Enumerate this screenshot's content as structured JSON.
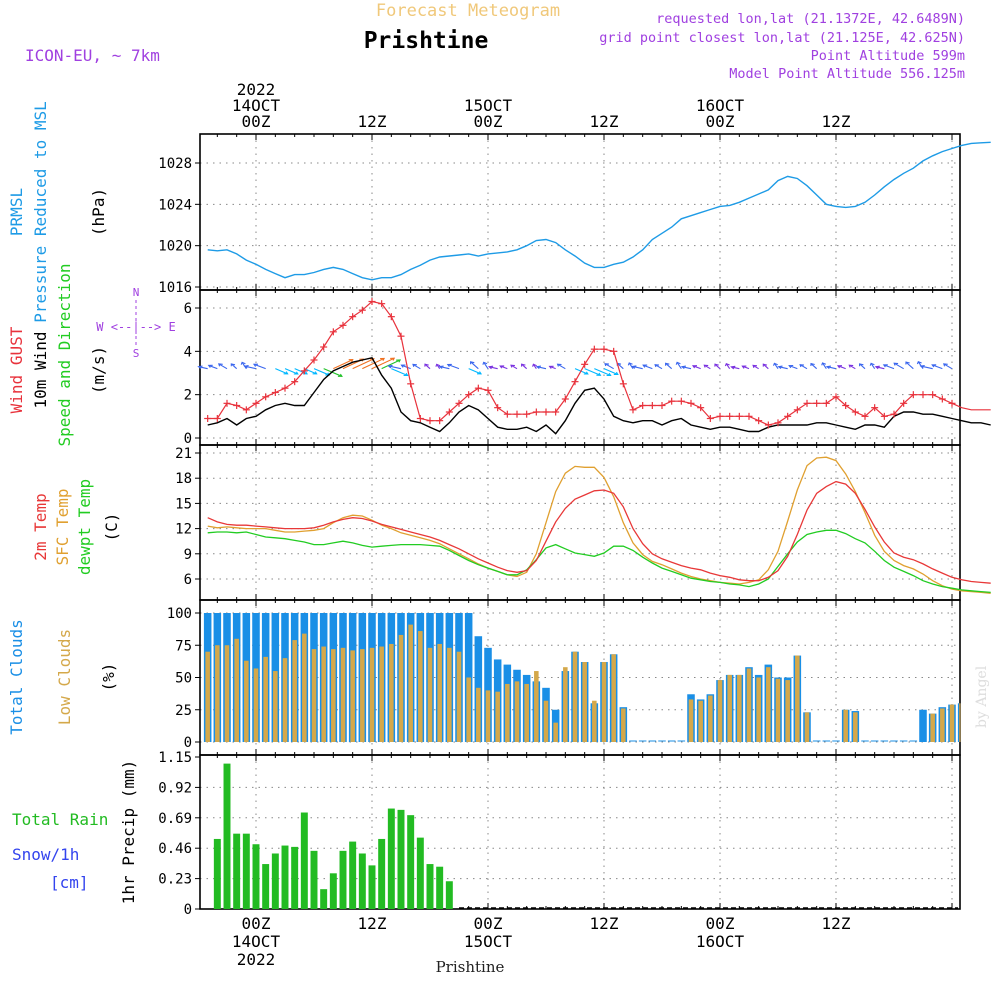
{
  "header": {
    "super_title": "Forecast Meteogram",
    "station": "Prishtine",
    "model": "ICON-EU, ~ 7km",
    "requested": "requested lon,lat (21.1372E, 42.6489N)",
    "grid_point": "grid point closest lon,lat (21.125E, 42.625N)",
    "point_alt": "Point Altitude 599m",
    "model_alt": "Model Point Altitude 556.125m",
    "watermark": "by Angel",
    "footer": "Prishtine"
  },
  "time_axis": {
    "top_labels": [
      {
        "h": 0,
        "lines": [
          "2022",
          "14OCT",
          "00Z"
        ]
      },
      {
        "h": 12,
        "lines": [
          "12Z"
        ]
      },
      {
        "h": 24,
        "lines": [
          "15OCT",
          "00Z"
        ]
      },
      {
        "h": 36,
        "lines": [
          "12Z"
        ]
      },
      {
        "h": 48,
        "lines": [
          "16OCT",
          "00Z"
        ]
      },
      {
        "h": 60,
        "lines": [
          "12Z"
        ]
      }
    ],
    "bottom_labels": [
      {
        "h": 0,
        "lines": [
          "00Z",
          "14OCT",
          "2022"
        ]
      },
      {
        "h": 12,
        "lines": [
          "12Z"
        ]
      },
      {
        "h": 24,
        "lines": [
          "00Z",
          "15OCT"
        ]
      },
      {
        "h": 36,
        "lines": [
          "12Z"
        ]
      },
      {
        "h": 48,
        "lines": [
          "00Z",
          "16OCT"
        ]
      },
      {
        "h": 60,
        "lines": [
          "12Z"
        ]
      }
    ]
  },
  "panels": {
    "pressure": {
      "labels": [
        "PRMSL",
        "Pressure Reduced to MSL"
      ],
      "unit": "(hPa)",
      "ticks": [
        "1016",
        "1020",
        "1024",
        "1028"
      ]
    },
    "wind": {
      "labels": [
        "Wind GUST",
        "10m Wind",
        "Speed and Direction"
      ],
      "unit": "(m/s)",
      "ticks": [
        "0",
        "2",
        "4",
        "6"
      ],
      "compass": {
        "we": "W <--|--> E",
        "n": "N",
        "s": "S"
      }
    },
    "temp": {
      "labels": [
        "2m Temp",
        "SFC Temp",
        "dewpt Temp"
      ],
      "unit": "(C)",
      "ticks": [
        "6",
        "9",
        "12",
        "15",
        "18",
        "21"
      ]
    },
    "clouds": {
      "labels": [
        "Total Clouds",
        "Low Clouds"
      ],
      "unit": "(%)",
      "ticks": [
        "0",
        "25",
        "50",
        "75",
        "100"
      ]
    },
    "precip": {
      "labels": [
        "Total  Rain",
        "Snow/1h",
        "[cm]"
      ],
      "unit": "1hr Precip (mm)",
      "ticks": [
        "0",
        "0.23",
        "0.46",
        "0.69",
        "0.92",
        "1.15"
      ]
    }
  },
  "colors": {
    "pressure": "#1e9be6",
    "gust": "#e8323c",
    "wind": "#000000",
    "green": "#22cc22",
    "temp2m": "#e83838",
    "sfc": "#e0a030",
    "dewpt": "#22cc22",
    "total_clouds": "#1a8fe6",
    "low_clouds": "#d4a84a",
    "rain": "#22bb22",
    "snow": "#3344ee",
    "title_gold": "#f0c87a",
    "purple": "#a040e0",
    "grid": "#888888"
  },
  "chart_data": {
    "type": "line",
    "x_unit": "hours from 14OCT 00Z",
    "x_range": [
      -5,
      76
    ],
    "pressure": {
      "ylim": [
        1016,
        1030
      ],
      "x": [
        -5,
        -4,
        -3,
        -2,
        -1,
        0,
        1,
        2,
        3,
        4,
        5,
        6,
        7,
        8,
        9,
        10,
        11,
        12,
        13,
        14,
        15,
        16,
        17,
        18,
        19,
        20,
        21,
        22,
        23,
        24,
        25,
        26,
        27,
        28,
        29,
        30,
        31,
        32,
        33,
        34,
        35,
        36,
        37,
        38,
        39,
        40,
        41,
        42,
        43,
        44,
        45,
        46,
        47,
        48,
        49,
        50,
        51,
        52,
        53,
        54,
        55,
        56,
        57,
        58,
        59,
        60,
        61,
        62,
        63,
        64,
        65,
        66,
        67,
        68,
        69,
        70,
        71,
        72,
        73,
        74,
        75,
        76
      ],
      "y": [
        1019.6,
        1019.5,
        1019.6,
        1019.2,
        1018.6,
        1018.2,
        1017.7,
        1017.3,
        1016.9,
        1017.2,
        1017.2,
        1017.4,
        1017.7,
        1017.9,
        1017.7,
        1017.3,
        1016.9,
        1016.7,
        1016.9,
        1016.9,
        1017.2,
        1017.7,
        1018.1,
        1018.6,
        1018.9,
        1019.0,
        1019.1,
        1019.2,
        1019.0,
        1019.2,
        1019.3,
        1019.4,
        1019.6,
        1020.0,
        1020.5,
        1020.6,
        1020.3,
        1019.6,
        1019.0,
        1018.3,
        1017.9,
        1017.9,
        1018.2,
        1018.4,
        1018.9,
        1019.6,
        1020.6,
        1021.2,
        1021.8,
        1022.6,
        1022.9,
        1023.2,
        1023.5,
        1023.8,
        1023.9,
        1024.2,
        1024.6,
        1025.0,
        1025.4,
        1026.3,
        1026.7,
        1026.5,
        1025.8,
        1024.9,
        1024.0,
        1023.8,
        1023.7,
        1023.8,
        1024.2,
        1024.9,
        1025.7,
        1026.4,
        1027.0,
        1027.5,
        1028.2,
        1028.7,
        1029.1,
        1029.4,
        1029.7,
        1029.9,
        1029.95,
        1030.0
      ]
    },
    "wind": {
      "ylim": [
        0,
        6.8
      ],
      "gust_x": [
        -5,
        -4,
        -3,
        -2,
        -1,
        0,
        1,
        2,
        3,
        4,
        5,
        6,
        7,
        8,
        9,
        10,
        11,
        12,
        13,
        14,
        15,
        16,
        17,
        18,
        19,
        20,
        21,
        22,
        23,
        24,
        25,
        26,
        27,
        28,
        29,
        30,
        31,
        32,
        33,
        34,
        35,
        36,
        37,
        38,
        39,
        40,
        41,
        42,
        43,
        44,
        45,
        46,
        47,
        48,
        49,
        50,
        51,
        52,
        53,
        54,
        55,
        56,
        57,
        58,
        59,
        60,
        61,
        62,
        63,
        64,
        65,
        66,
        67,
        68,
        69,
        70,
        71,
        72,
        73,
        74,
        75,
        76
      ],
      "gust_y": [
        0.9,
        0.9,
        1.6,
        1.5,
        1.3,
        1.6,
        1.9,
        2.1,
        2.3,
        2.6,
        3.1,
        3.6,
        4.2,
        4.9,
        5.2,
        5.6,
        5.9,
        6.3,
        6.2,
        5.6,
        4.7,
        2.5,
        0.9,
        0.8,
        0.8,
        1.2,
        1.6,
        2.0,
        2.3,
        2.2,
        1.4,
        1.1,
        1.1,
        1.1,
        1.2,
        1.2,
        1.2,
        1.8,
        2.6,
        3.4,
        4.1,
        4.1,
        4.0,
        2.5,
        1.3,
        1.5,
        1.5,
        1.5,
        1.7,
        1.7,
        1.6,
        1.4,
        0.9,
        1.0,
        1.0,
        1.0,
        1.0,
        0.8,
        0.6,
        0.7,
        1.0,
        1.3,
        1.6,
        1.6,
        1.6,
        1.9,
        1.5,
        1.2,
        1.0,
        1.4,
        1.0,
        1.1,
        1.6,
        2.0,
        2.0,
        2.0,
        1.8,
        1.6,
        1.4,
        1.3,
        1.3,
        1.3
      ],
      "speed_x": [
        -5,
        -4,
        -3,
        -2,
        -1,
        0,
        1,
        2,
        3,
        4,
        5,
        6,
        7,
        8,
        9,
        10,
        11,
        12,
        13,
        14,
        15,
        16,
        17,
        18,
        19,
        20,
        21,
        22,
        23,
        24,
        25,
        26,
        27,
        28,
        29,
        30,
        31,
        32,
        33,
        34,
        35,
        36,
        37,
        38,
        39,
        40,
        41,
        42,
        43,
        44,
        45,
        46,
        47,
        48,
        49,
        50,
        51,
        52,
        53,
        54,
        55,
        56,
        57,
        58,
        59,
        60,
        61,
        62,
        63,
        64,
        65,
        66,
        67,
        68,
        69,
        70,
        71,
        72,
        73,
        74,
        75,
        76
      ],
      "speed_y": [
        0.6,
        0.7,
        0.9,
        0.6,
        0.9,
        1.0,
        1.3,
        1.5,
        1.6,
        1.5,
        1.5,
        2.1,
        2.7,
        3.1,
        3.3,
        3.5,
        3.6,
        3.7,
        2.9,
        2.3,
        1.2,
        0.8,
        0.7,
        0.5,
        0.3,
        0.7,
        1.2,
        1.5,
        1.3,
        0.9,
        0.5,
        0.4,
        0.4,
        0.5,
        0.3,
        0.6,
        0.2,
        0.8,
        1.6,
        2.2,
        2.3,
        1.8,
        1.0,
        0.8,
        0.7,
        0.8,
        0.8,
        0.6,
        0.8,
        0.9,
        0.6,
        0.5,
        0.4,
        0.5,
        0.5,
        0.4,
        0.3,
        0.3,
        0.5,
        0.6,
        0.6,
        0.6,
        0.6,
        0.7,
        0.7,
        0.6,
        0.5,
        0.4,
        0.6,
        0.6,
        0.5,
        1.0,
        1.2,
        1.2,
        1.1,
        1.1,
        1.0,
        0.9,
        0.8,
        0.7,
        0.7,
        0.6
      ]
    },
    "temperature": {
      "ylim": [
        4,
        21
      ],
      "x": [
        -5,
        -4,
        -3,
        -2,
        -1,
        0,
        1,
        2,
        3,
        4,
        5,
        6,
        7,
        8,
        9,
        10,
        11,
        12,
        13,
        14,
        15,
        16,
        17,
        18,
        19,
        20,
        21,
        22,
        23,
        24,
        25,
        26,
        27,
        28,
        29,
        30,
        31,
        32,
        33,
        34,
        35,
        36,
        37,
        38,
        39,
        40,
        41,
        42,
        43,
        44,
        45,
        46,
        47,
        48,
        49,
        50,
        51,
        52,
        53,
        54,
        55,
        56,
        57,
        58,
        59,
        60,
        61,
        62,
        63,
        64,
        65,
        66,
        67,
        68,
        69,
        70,
        71,
        72,
        73,
        74,
        75,
        76
      ],
      "t2m": [
        13.3,
        12.8,
        12.5,
        12.4,
        12.4,
        12.3,
        12.2,
        12.1,
        12.0,
        12.0,
        12.0,
        12.1,
        12.4,
        12.8,
        13.1,
        13.3,
        13.2,
        12.9,
        12.5,
        12.2,
        11.9,
        11.6,
        11.3,
        11.0,
        10.6,
        10.1,
        9.6,
        9.0,
        8.4,
        7.9,
        7.4,
        7.0,
        6.8,
        7.0,
        8.2,
        10.5,
        12.8,
        14.4,
        15.5,
        16.0,
        16.5,
        16.6,
        16.2,
        14.6,
        12.0,
        10.2,
        9.0,
        8.4,
        8.0,
        7.6,
        7.3,
        7.1,
        6.7,
        6.4,
        6.2,
        5.9,
        5.8,
        5.8,
        6.2,
        7.0,
        8.7,
        11.3,
        14.2,
        16.2,
        17.0,
        17.6,
        17.3,
        16.2,
        14.3,
        12.2,
        10.4,
        9.1,
        8.6,
        8.3,
        7.8,
        7.2,
        6.7,
        6.2,
        5.9,
        5.7,
        5.6,
        5.5
      ],
      "sfc": [
        12.3,
        12.1,
        12.2,
        12.1,
        12.0,
        12.0,
        12.0,
        11.8,
        11.6,
        11.6,
        11.7,
        11.8,
        12.0,
        12.7,
        13.3,
        13.6,
        13.5,
        13.0,
        12.4,
        12.0,
        11.5,
        11.2,
        10.9,
        10.6,
        10.2,
        9.6,
        9.0,
        8.4,
        7.8,
        7.3,
        6.9,
        6.5,
        6.3,
        6.8,
        9.0,
        12.7,
        16.4,
        18.6,
        19.4,
        19.3,
        19.3,
        18.1,
        15.8,
        12.7,
        10.3,
        8.9,
        8.1,
        7.7,
        7.2,
        6.7,
        6.3,
        6.0,
        5.8,
        5.6,
        5.5,
        5.4,
        5.6,
        5.9,
        7.1,
        9.3,
        12.9,
        16.6,
        19.5,
        20.4,
        20.5,
        20.1,
        18.5,
        16.4,
        13.9,
        11.2,
        9.3,
        8.2,
        7.6,
        7.2,
        6.6,
        5.8,
        5.2,
        4.8,
        4.6,
        4.5,
        4.4,
        4.3
      ],
      "dewpt": [
        11.5,
        11.6,
        11.6,
        11.5,
        11.6,
        11.3,
        11.0,
        10.9,
        10.8,
        10.6,
        10.4,
        10.1,
        10.1,
        10.3,
        10.5,
        10.3,
        10.0,
        9.8,
        9.9,
        10.0,
        10.1,
        10.1,
        10.1,
        10.0,
        9.9,
        9.4,
        8.8,
        8.2,
        7.7,
        7.3,
        6.9,
        6.5,
        6.5,
        7.1,
        8.3,
        9.7,
        10.1,
        9.6,
        9.1,
        8.9,
        8.7,
        9.1,
        9.9,
        9.9,
        9.4,
        8.6,
        7.9,
        7.3,
        6.9,
        6.5,
        6.1,
        5.9,
        5.7,
        5.6,
        5.4,
        5.3,
        5.1,
        5.4,
        6.0,
        7.5,
        9.0,
        10.4,
        11.3,
        11.6,
        11.8,
        11.8,
        11.4,
        10.8,
        10.3,
        9.3,
        8.2,
        7.4,
        6.9,
        6.4,
        5.8,
        5.4,
        5.1,
        4.9,
        4.7,
        4.6,
        4.5,
        4.4
      ]
    },
    "clouds": {
      "ylim": [
        0,
        100
      ],
      "x": [
        -5,
        -4,
        -3,
        -2,
        -1,
        0,
        1,
        2,
        3,
        4,
        5,
        6,
        7,
        8,
        9,
        10,
        11,
        12,
        13,
        14,
        15,
        16,
        17,
        18,
        19,
        20,
        21,
        22,
        23,
        24,
        25,
        26,
        27,
        28,
        29,
        30,
        31,
        32,
        33,
        34,
        35,
        36,
        37,
        38,
        39,
        40,
        41,
        42,
        43,
        44,
        45,
        46,
        47,
        48,
        49,
        50,
        51,
        52,
        53,
        54,
        55,
        56,
        57,
        58,
        59,
        60,
        61,
        62,
        63,
        64,
        65,
        66,
        67,
        68,
        69,
        70,
        71,
        72,
        73,
        74,
        75,
        76
      ],
      "total": [
        100,
        100,
        100,
        100,
        100,
        100,
        100,
        100,
        100,
        100,
        100,
        100,
        100,
        100,
        100,
        100,
        100,
        100,
        100,
        100,
        100,
        100,
        100,
        100,
        100,
        100,
        100,
        100,
        82,
        73,
        64,
        60,
        56,
        52,
        47,
        42,
        25,
        55,
        70,
        62,
        30,
        62,
        68,
        27,
        0,
        0,
        0,
        0,
        0,
        0,
        37,
        33,
        37,
        48,
        52,
        52,
        58,
        52,
        60,
        50,
        50,
        67,
        23,
        0,
        0,
        0,
        25,
        24,
        0,
        0,
        0,
        0,
        0,
        0,
        25,
        22,
        27,
        29,
        30,
        30,
        30,
        30
      ],
      "low": [
        70,
        75,
        75,
        80,
        63,
        57,
        66,
        55,
        65,
        79,
        84,
        72,
        74,
        72,
        73,
        71,
        72,
        73,
        74,
        76,
        83,
        91,
        86,
        73,
        76,
        73,
        70,
        50,
        42,
        40,
        39,
        45,
        47,
        45,
        55,
        32,
        15,
        58,
        70,
        62,
        32,
        62,
        68,
        26,
        0,
        0,
        0,
        0,
        0,
        0,
        33,
        32,
        36,
        48,
        52,
        52,
        57,
        50,
        58,
        49,
        48,
        67,
        23,
        0,
        0,
        0,
        25,
        23,
        0,
        0,
        0,
        0,
        0,
        0,
        0,
        22,
        26,
        29,
        30,
        30,
        30,
        30
      ]
    },
    "precip": {
      "ylim": [
        0,
        1.15
      ],
      "x": [
        -4,
        -3,
        -2,
        -1,
        0,
        1,
        2,
        3,
        4,
        5,
        6,
        7,
        8,
        9,
        10,
        11,
        12,
        13,
        14,
        15,
        16,
        17,
        18,
        19
      ],
      "rain": [
        0.53,
        1.1,
        0.57,
        0.57,
        0.49,
        0.34,
        0.42,
        0.48,
        0.47,
        0.73,
        0.44,
        0.15,
        0.27,
        0.44,
        0.51,
        0.42,
        0.33,
        0.53,
        0.76,
        0.75,
        0.71,
        0.54,
        0.34,
        0.32
      ],
      "rain_extra_x": [
        20
      ],
      "rain_extra": [
        0.21
      ]
    }
  }
}
